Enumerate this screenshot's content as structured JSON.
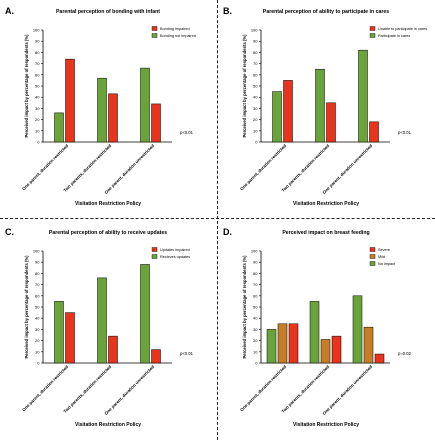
{
  "colors": {
    "red": "#e8341c",
    "green": "#6aa33a",
    "orange": "#c67d26",
    "axis": "#000000"
  },
  "panels": [
    {
      "letter": "A.",
      "p_value": "p<0.01",
      "chart_data": {
        "type": "bar",
        "title": "Parental perception of bonding with infant",
        "xlabel": "Visitation Restriction Policy",
        "ylabel": "Perceived impact by percentage of respondents (%)",
        "ylim": [
          0,
          100
        ],
        "yticks": [
          0,
          10,
          20,
          30,
          40,
          50,
          60,
          70,
          80,
          90,
          100
        ],
        "categories": [
          "One parent, duration restricted",
          "Two parents, duration restricted",
          "One parent, duration unrestricted"
        ],
        "legend_position": "top-right",
        "series": [
          {
            "name": "Bonding impaired",
            "color": "#e8341c",
            "values": [
              74,
              43,
              34
            ]
          },
          {
            "name": "Bonding not impaired",
            "color": "#6aa33a",
            "values": [
              26,
              57,
              66
            ]
          }
        ],
        "bar_order": [
          1,
          0
        ]
      }
    },
    {
      "letter": "B.",
      "p_value": "p<0.01",
      "chart_data": {
        "type": "bar",
        "title": "Parental perception of ability to participate in cares",
        "xlabel": "Visitation Restriction Policy",
        "ylabel": "Perceived impact by percentage of respondents (%)",
        "ylim": [
          0,
          100
        ],
        "yticks": [
          0,
          10,
          20,
          30,
          40,
          50,
          60,
          70,
          80,
          90,
          100
        ],
        "categories": [
          "One parent, duration restricted",
          "Two parents, duration restricted",
          "One parent, duration unrestricted"
        ],
        "legend_position": "top-right",
        "series": [
          {
            "name": "Unable to participate in cares",
            "color": "#e8341c",
            "values": [
              55,
              35,
              18
            ]
          },
          {
            "name": "Participate in cares",
            "color": "#6aa33a",
            "values": [
              45,
              65,
              82
            ]
          }
        ],
        "bar_order": [
          1,
          0
        ]
      }
    },
    {
      "letter": "C.",
      "p_value": "p<0.01",
      "chart_data": {
        "type": "bar",
        "title": "Parental perception of ability to receive updates",
        "xlabel": "Visitation Restriction Policy",
        "ylabel": "Perceived impact by percentage of respondents (%)",
        "ylim": [
          0,
          100
        ],
        "yticks": [
          0,
          10,
          20,
          30,
          40,
          50,
          60,
          70,
          80,
          90,
          100
        ],
        "categories": [
          "One parent, duration restricted",
          "Two parents, duration restricted",
          "One parent, duration unrestricted"
        ],
        "legend_position": "top-right",
        "series": [
          {
            "name": "Updates impaired",
            "color": "#e8341c",
            "values": [
              45,
              24,
              12
            ]
          },
          {
            "name": "Recieves updates",
            "color": "#6aa33a",
            "values": [
              55,
              76,
              88
            ]
          }
        ],
        "bar_order": [
          1,
          0
        ]
      }
    },
    {
      "letter": "D.",
      "p_value": "p=0.02",
      "chart_data": {
        "type": "bar",
        "title": "Perceived impact on breast feeding",
        "xlabel": "Visitation Restriction Policy",
        "ylabel": "Perceived impact by percentage of respondents (%)",
        "ylim": [
          0,
          100
        ],
        "yticks": [
          0,
          10,
          20,
          30,
          40,
          50,
          60,
          70,
          80,
          90,
          100
        ],
        "categories": [
          "One parent, duration restricted",
          "Two parents, duration restricted",
          "One parent, duration unrestricted"
        ],
        "legend_position": "top-right",
        "series": [
          {
            "name": "Severe",
            "color": "#e8341c",
            "values": [
              35,
              24,
              8
            ]
          },
          {
            "name": "Mild",
            "color": "#c67d26",
            "values": [
              35,
              21,
              32
            ]
          },
          {
            "name": "No impact",
            "color": "#6aa33a",
            "values": [
              30,
              55,
              60
            ]
          }
        ],
        "bar_order": [
          2,
          1,
          0
        ]
      }
    }
  ]
}
